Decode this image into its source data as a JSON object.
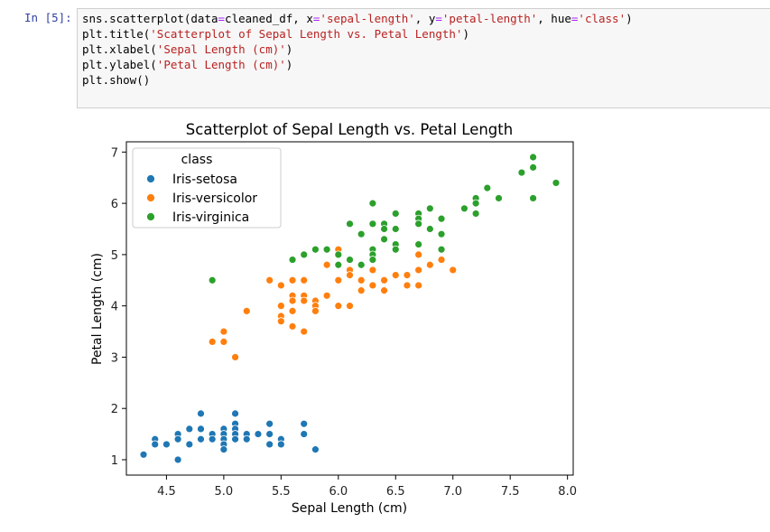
{
  "cell": {
    "prompt": "In [5]:",
    "lines": [
      [
        [
          "sns.scatterplot(data",
          "n0"
        ],
        [
          "=",
          "o"
        ],
        [
          "cleaned_df, x",
          "n0"
        ],
        [
          "=",
          "o"
        ],
        [
          "'sepal-length'",
          "s"
        ],
        [
          ", y",
          "n0"
        ],
        [
          "=",
          "o"
        ],
        [
          "'petal-length'",
          "s"
        ],
        [
          ", hue",
          "n0"
        ],
        [
          "=",
          "o"
        ],
        [
          "'class'",
          "s"
        ],
        [
          ")",
          "n0"
        ]
      ],
      [
        [
          "plt.title(",
          "n0"
        ],
        [
          "'Scatterplot of Sepal Length vs. Petal Length'",
          "s"
        ],
        [
          ")",
          "n0"
        ]
      ],
      [
        [
          "plt.xlabel(",
          "n0"
        ],
        [
          "'Sepal Length (cm)'",
          "s"
        ],
        [
          ")",
          "n0"
        ]
      ],
      [
        [
          "plt.ylabel(",
          "n0"
        ],
        [
          "'Petal Length (cm)'",
          "s"
        ],
        [
          ")",
          "n0"
        ]
      ],
      [
        [
          "plt.show()",
          "n0"
        ]
      ]
    ]
  },
  "chart_data": {
    "type": "scatter",
    "title": "Scatterplot of Sepal Length vs. Petal Length",
    "xlabel": "Sepal Length (cm)",
    "ylabel": "Petal Length (cm)",
    "xlim": [
      4.15,
      8.05
    ],
    "ylim": [
      0.7,
      7.2
    ],
    "xticks": [
      4.5,
      5.0,
      5.5,
      6.0,
      6.5,
      7.0,
      7.5,
      8.0
    ],
    "xtick_labels": [
      "4.5",
      "5.0",
      "5.5",
      "6.0",
      "6.5",
      "7.0",
      "7.5",
      "8.0"
    ],
    "yticks": [
      1,
      2,
      3,
      4,
      5,
      6,
      7
    ],
    "ytick_labels": [
      "1",
      "2",
      "3",
      "4",
      "5",
      "6",
      "7"
    ],
    "legend": {
      "title": "class",
      "placement": "top-left"
    },
    "series": [
      {
        "name": "Iris-setosa",
        "color": "#1f77b4",
        "points": [
          [
            4.3,
            1.1
          ],
          [
            4.4,
            1.4
          ],
          [
            4.4,
            1.3
          ],
          [
            4.5,
            1.3
          ],
          [
            4.6,
            1.5
          ],
          [
            4.6,
            1.4
          ],
          [
            4.6,
            1.0
          ],
          [
            4.7,
            1.6
          ],
          [
            4.7,
            1.3
          ],
          [
            4.8,
            1.9
          ],
          [
            4.8,
            1.6
          ],
          [
            4.8,
            1.4
          ],
          [
            4.9,
            1.5
          ],
          [
            4.9,
            1.4
          ],
          [
            5.0,
            1.6
          ],
          [
            5.0,
            1.5
          ],
          [
            5.0,
            1.4
          ],
          [
            5.0,
            1.3
          ],
          [
            5.0,
            1.2
          ],
          [
            5.1,
            1.9
          ],
          [
            5.1,
            1.7
          ],
          [
            5.1,
            1.6
          ],
          [
            5.1,
            1.5
          ],
          [
            5.1,
            1.4
          ],
          [
            5.2,
            1.5
          ],
          [
            5.2,
            1.4
          ],
          [
            5.3,
            1.5
          ],
          [
            5.4,
            1.7
          ],
          [
            5.4,
            1.5
          ],
          [
            5.4,
            1.3
          ],
          [
            5.5,
            1.4
          ],
          [
            5.5,
            1.3
          ],
          [
            5.7,
            1.7
          ],
          [
            5.7,
            1.5
          ],
          [
            5.8,
            1.2
          ]
        ]
      },
      {
        "name": "Iris-versicolor",
        "color": "#ff7f0e",
        "points": [
          [
            4.9,
            3.3
          ],
          [
            5.0,
            3.5
          ],
          [
            5.0,
            3.3
          ],
          [
            5.1,
            3.0
          ],
          [
            5.2,
            3.9
          ],
          [
            5.4,
            4.5
          ],
          [
            5.5,
            4.4
          ],
          [
            5.5,
            4.0
          ],
          [
            5.5,
            3.8
          ],
          [
            5.5,
            3.7
          ],
          [
            5.6,
            4.5
          ],
          [
            5.6,
            4.2
          ],
          [
            5.6,
            4.1
          ],
          [
            5.6,
            3.9
          ],
          [
            5.6,
            3.6
          ],
          [
            5.7,
            4.5
          ],
          [
            5.7,
            4.2
          ],
          [
            5.7,
            4.1
          ],
          [
            5.7,
            3.5
          ],
          [
            5.8,
            4.1
          ],
          [
            5.8,
            4.0
          ],
          [
            5.8,
            3.9
          ],
          [
            5.9,
            4.8
          ],
          [
            5.9,
            4.2
          ],
          [
            6.0,
            5.1
          ],
          [
            6.0,
            4.5
          ],
          [
            6.0,
            4.0
          ],
          [
            6.1,
            4.7
          ],
          [
            6.1,
            4.6
          ],
          [
            6.1,
            4.0
          ],
          [
            6.2,
            4.5
          ],
          [
            6.2,
            4.3
          ],
          [
            6.3,
            4.9
          ],
          [
            6.3,
            4.7
          ],
          [
            6.3,
            4.4
          ],
          [
            6.4,
            4.5
          ],
          [
            6.4,
            4.3
          ],
          [
            6.5,
            4.6
          ],
          [
            6.6,
            4.6
          ],
          [
            6.6,
            4.4
          ],
          [
            6.7,
            5.0
          ],
          [
            6.7,
            4.7
          ],
          [
            6.7,
            4.4
          ],
          [
            6.8,
            4.8
          ],
          [
            6.9,
            4.9
          ],
          [
            7.0,
            4.7
          ]
        ]
      },
      {
        "name": "Iris-virginica",
        "color": "#2ca02c",
        "points": [
          [
            4.9,
            4.5
          ],
          [
            5.6,
            4.9
          ],
          [
            5.7,
            5.0
          ],
          [
            5.8,
            5.1
          ],
          [
            5.9,
            5.1
          ],
          [
            6.0,
            5.0
          ],
          [
            6.0,
            4.8
          ],
          [
            6.1,
            5.6
          ],
          [
            6.1,
            4.9
          ],
          [
            6.2,
            5.4
          ],
          [
            6.2,
            4.8
          ],
          [
            6.3,
            6.0
          ],
          [
            6.3,
            5.6
          ],
          [
            6.3,
            5.1
          ],
          [
            6.3,
            5.0
          ],
          [
            6.3,
            4.9
          ],
          [
            6.4,
            5.6
          ],
          [
            6.4,
            5.5
          ],
          [
            6.4,
            5.3
          ],
          [
            6.5,
            5.8
          ],
          [
            6.5,
            5.5
          ],
          [
            6.5,
            5.2
          ],
          [
            6.5,
            5.1
          ],
          [
            6.7,
            5.8
          ],
          [
            6.7,
            5.7
          ],
          [
            6.7,
            5.6
          ],
          [
            6.7,
            5.2
          ],
          [
            6.8,
            5.9
          ],
          [
            6.8,
            5.5
          ],
          [
            6.9,
            5.7
          ],
          [
            6.9,
            5.4
          ],
          [
            6.9,
            5.1
          ],
          [
            7.1,
            5.9
          ],
          [
            7.2,
            6.1
          ],
          [
            7.2,
            6.0
          ],
          [
            7.2,
            5.8
          ],
          [
            7.3,
            6.3
          ],
          [
            7.4,
            6.1
          ],
          [
            7.6,
            6.6
          ],
          [
            7.7,
            6.9
          ],
          [
            7.7,
            6.7
          ],
          [
            7.7,
            6.1
          ],
          [
            7.9,
            6.4
          ]
        ]
      }
    ]
  }
}
